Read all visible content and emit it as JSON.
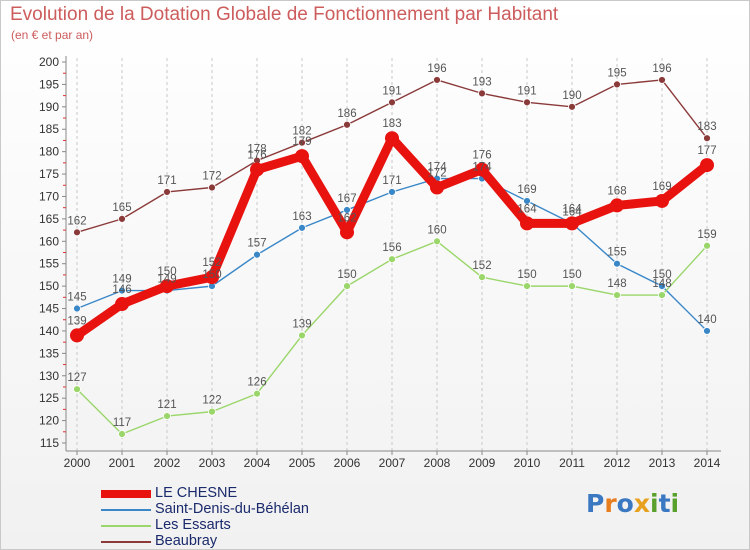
{
  "header": {
    "title": "Evolution de la Dotation Globale de Fonctionnement par Habitant",
    "subtitle": "(en € et par an)"
  },
  "brand": {
    "text": "Proxiti",
    "letters": [
      "P",
      "r",
      "o",
      "x",
      "i",
      "t",
      "i"
    ],
    "letter_colors": [
      "#3a78c2",
      "#e87d1e",
      "#3a78c2",
      "#e8a11e",
      "#5aa02c",
      "#3a78c2",
      "#5aa02c"
    ]
  },
  "chart_data": {
    "type": "line",
    "title": "Evolution de la Dotation Globale de Fonctionnement par Habitant",
    "subtitle": "(en € et par an)",
    "x": [
      2000,
      2001,
      2002,
      2003,
      2004,
      2005,
      2006,
      2007,
      2008,
      2009,
      2010,
      2011,
      2012,
      2013,
      2014
    ],
    "x_tick_labels": [
      "2000",
      "2001",
      "2002",
      "2003",
      "2004",
      "2005",
      "2006",
      "2007",
      "2008",
      "2009",
      "2010",
      "2011",
      "2012",
      "2013",
      "2014"
    ],
    "ylim": [
      115,
      200
    ],
    "y_ticks": [
      115,
      120,
      125,
      130,
      135,
      140,
      145,
      150,
      155,
      160,
      165,
      170,
      175,
      180,
      185,
      190,
      195,
      200
    ],
    "y_tick_labels": [
      "115",
      "120",
      "125",
      "130",
      "135",
      "140",
      "145",
      "150",
      "155",
      "160",
      "165",
      "170",
      "175",
      "180",
      "185",
      "190",
      "195",
      "200"
    ],
    "grid": "vertical dashed lines at each year",
    "legend_position": "bottom-left",
    "series": [
      {
        "name": "Beaubray",
        "color": "#8b3a3a",
        "style": "thin",
        "values": [
          162,
          165,
          171,
          172,
          178,
          182,
          186,
          191,
          196,
          193,
          191,
          190,
          195,
          196,
          183
        ],
        "labels": [
          "162",
          "165",
          "171",
          "172",
          "178",
          "182",
          "186",
          "191",
          "196",
          "193",
          "191",
          "190",
          "195",
          "196",
          "183"
        ]
      },
      {
        "name": "Saint-Denis-du-Béhélan",
        "color": "#3a87c8",
        "style": "thin",
        "values": [
          145,
          149,
          149,
          150,
          157,
          163,
          167,
          171,
          174,
          174,
          169,
          164,
          155,
          150,
          140
        ],
        "labels": [
          "145",
          "149",
          "149",
          "150",
          "157",
          "163",
          "167",
          "171",
          "174",
          "174",
          "169",
          "164",
          "155",
          "150",
          "140"
        ]
      },
      {
        "name": "Les Essarts",
        "color": "#9ad66a",
        "style": "thin",
        "values": [
          127,
          117,
          121,
          122,
          126,
          139,
          150,
          156,
          160,
          152,
          150,
          150,
          148,
          148,
          159
        ],
        "labels": [
          "127",
          "117",
          "121",
          "122",
          "126",
          "139",
          "150",
          "156",
          "160",
          "152",
          "150",
          "150",
          "148",
          "148",
          "159"
        ]
      },
      {
        "name": "LE CHESNE",
        "color": "#e8120f",
        "style": "thick",
        "values": [
          139,
          146,
          150,
          152,
          176,
          179,
          162,
          183,
          172,
          176,
          164,
          164,
          168,
          169,
          177
        ],
        "labels": [
          "139",
          "146",
          "150",
          "152",
          "176",
          "179",
          "162",
          "183",
          "172",
          "176",
          "164",
          "164",
          "168",
          "169",
          "177"
        ]
      }
    ]
  },
  "legend": {
    "items": [
      {
        "label": "LE CHESNE",
        "color": "#e8120f",
        "thickness": "thick"
      },
      {
        "label": "Saint-Denis-du-Béhélan",
        "color": "#3a87c8",
        "thickness": "thin"
      },
      {
        "label": "Les Essarts",
        "color": "#9ad66a",
        "thickness": "thin"
      },
      {
        "label": "Beaubray",
        "color": "#8b3a3a",
        "thickness": "thin"
      }
    ]
  },
  "style": {
    "title_color": "#cd5c5c",
    "axis_color": "#888888",
    "minor_tick_color": "#e03030"
  }
}
